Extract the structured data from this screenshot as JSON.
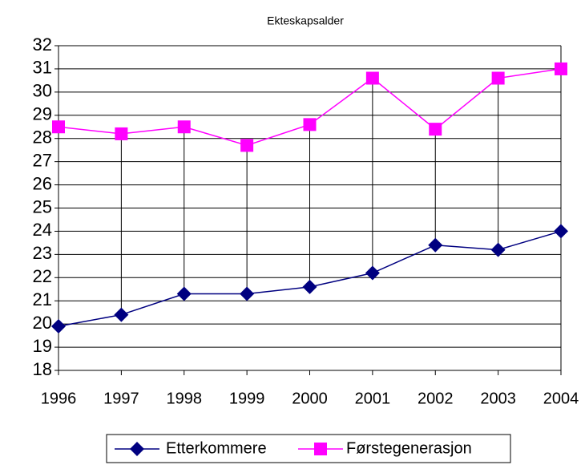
{
  "chart_data": {
    "type": "line",
    "title": "Ekteskapsalder",
    "categories": [
      "1996",
      "1997",
      "1998",
      "1999",
      "2000",
      "2001",
      "2002",
      "2003",
      "2004"
    ],
    "series": [
      {
        "name": "Etterkommere",
        "color": "#000080",
        "marker": "diamond",
        "values": [
          19.9,
          20.4,
          21.3,
          21.3,
          21.6,
          22.2,
          23.4,
          23.2,
          24.0
        ]
      },
      {
        "name": "Førstegenerasjon",
        "color": "#ff00ff",
        "marker": "square",
        "values": [
          28.5,
          28.2,
          28.5,
          27.7,
          28.6,
          30.6,
          28.4,
          30.6,
          31.0
        ]
      }
    ],
    "ylim": [
      18,
      32
    ],
    "yticks": [
      18,
      19,
      20,
      21,
      22,
      23,
      24,
      25,
      26,
      27,
      28,
      29,
      30,
      31,
      32
    ],
    "grid": true,
    "high_low_lines": true,
    "legend": "bottom"
  }
}
